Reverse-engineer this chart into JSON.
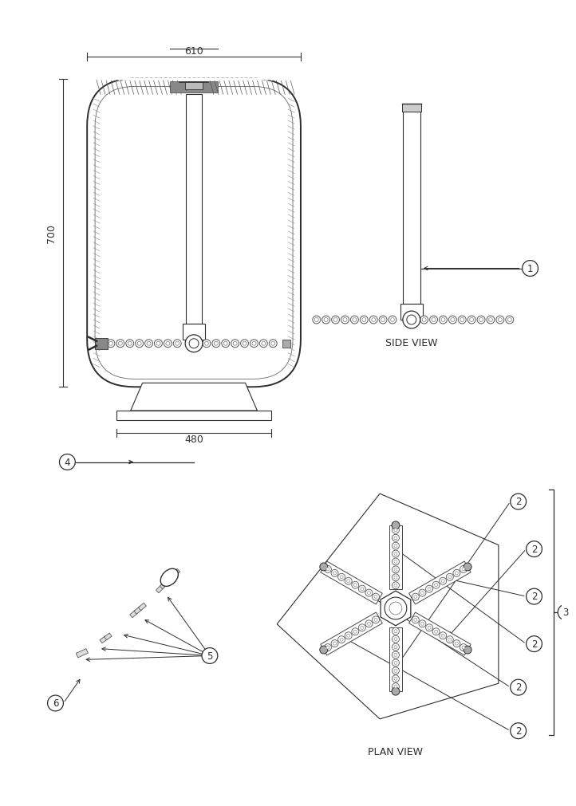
{
  "bg_color": "#ffffff",
  "lc": "#2d2d2d",
  "dc": "#333333",
  "title_side_view": "SIDE VIEW",
  "title_plan_view": "PLAN VIEW",
  "dim_610": "610",
  "dim_700": "700",
  "dim_480": "480",
  "label_1": "1",
  "label_2": "2",
  "label_3": "3",
  "label_4": "4",
  "label_5": "5",
  "label_6": "6"
}
